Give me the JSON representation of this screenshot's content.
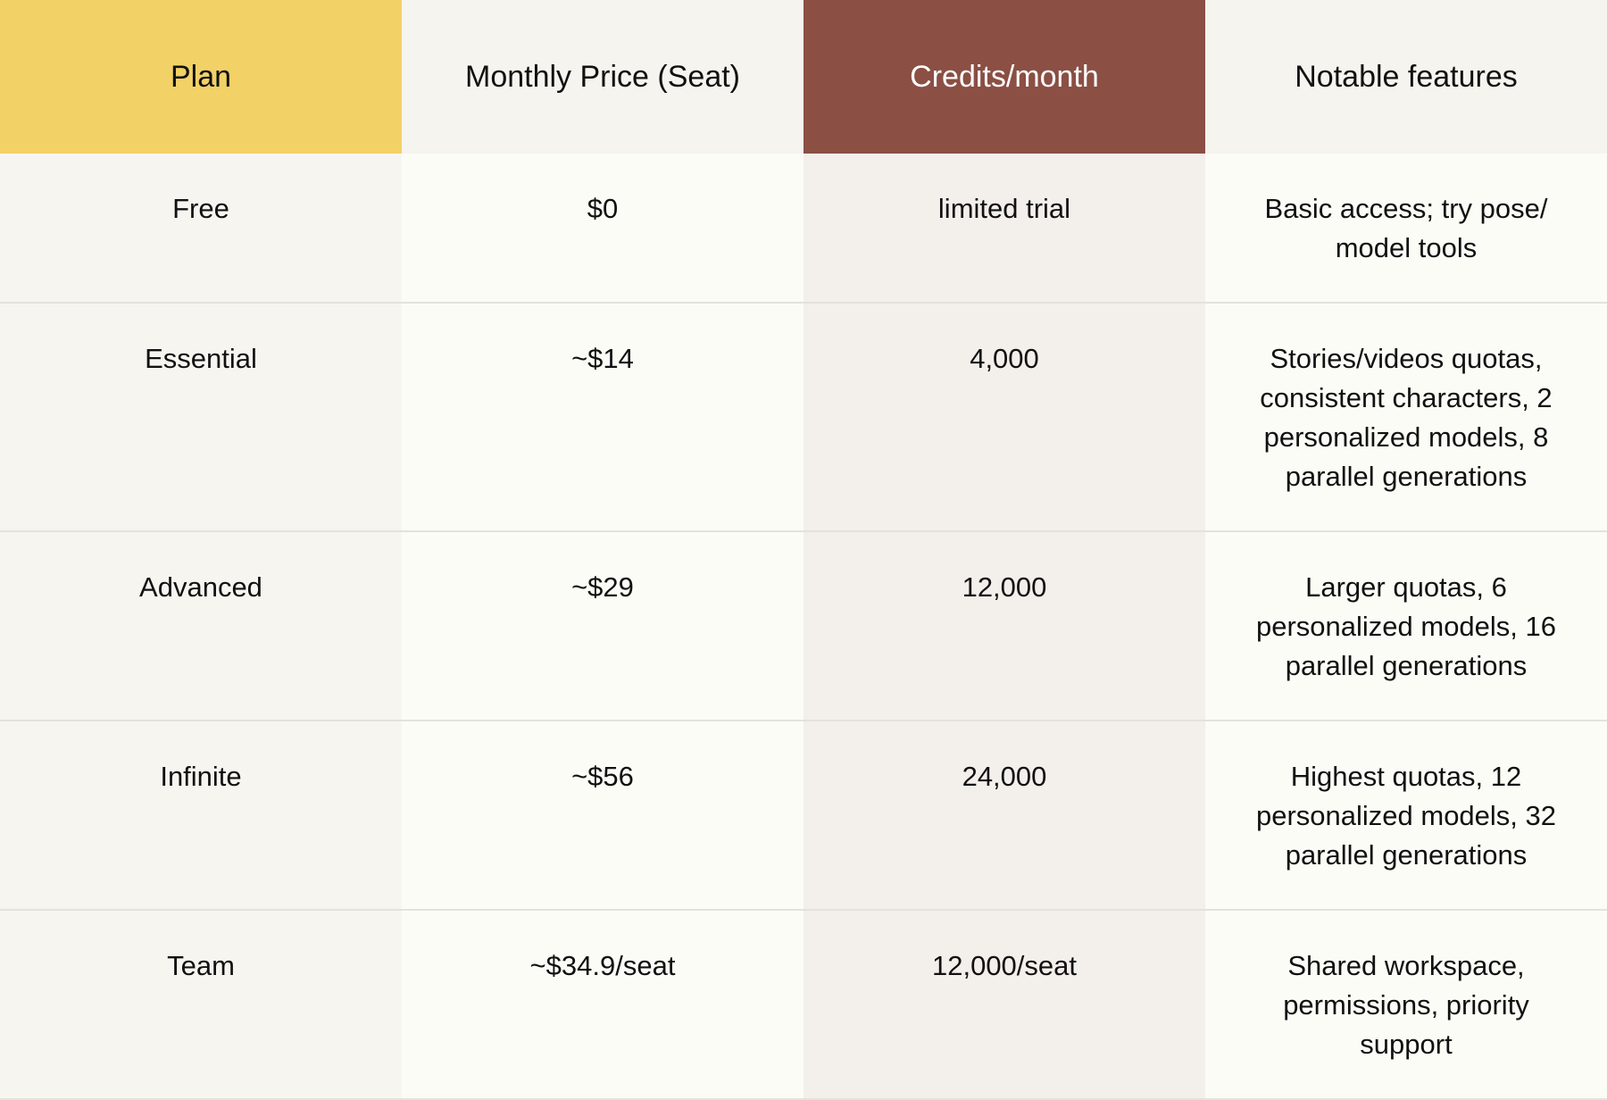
{
  "colors": {
    "plan_header_bg": "#f2d166",
    "credits_header_bg": "#8b4f44",
    "neutral_header_bg": "#f6f4ee",
    "plan_col_bg": "#f7f5ef",
    "credits_col_bg": "#f3efeb",
    "body_bg": "#fcfcf6",
    "row_divider": "#e4e2dc"
  },
  "table": {
    "headers": [
      "Plan",
      "Monthly Price (Seat)",
      "Credits/month",
      "Notable features"
    ],
    "rows": [
      {
        "plan": "Free",
        "price": "$0",
        "credits": "limited trial",
        "features": "Basic access; try pose/ model tools"
      },
      {
        "plan": "Essential",
        "price": "~$14",
        "credits": "4,000",
        "features": "Stories/videos quotas, consistent characters, 2 personalized models, 8 parallel generations"
      },
      {
        "plan": "Advanced",
        "price": "~$29",
        "credits": "12,000",
        "features": "Larger quotas, 6 personalized models, 16 parallel generations"
      },
      {
        "plan": "Infinite",
        "price": "~$56",
        "credits": "24,000",
        "features": "Highest quotas, 12 personalized models, 32 parallel generations"
      },
      {
        "plan": "Team",
        "price": "~$34.9/seat",
        "credits": "12,000/seat",
        "features": "Shared workspace, permissions, priority support"
      }
    ]
  }
}
